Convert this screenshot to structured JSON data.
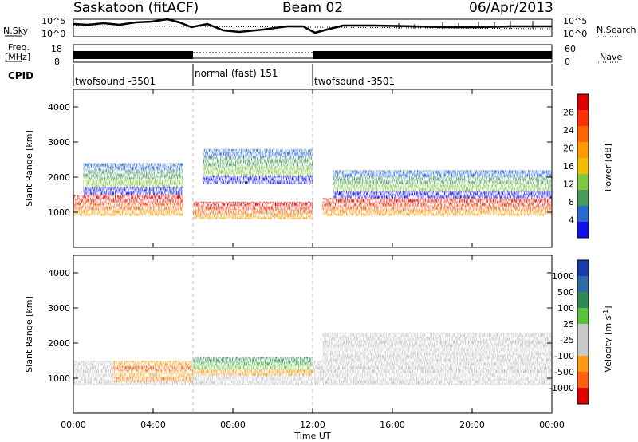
{
  "header": {
    "station": "Saskatoon  (fitACF)",
    "beam": "Beam 02",
    "date": "06/Apr/2013"
  },
  "strip": {
    "nsky_label": "N.Sky",
    "nsky_ticks": [
      "10^5",
      "10^0"
    ],
    "nsearch_label": "N.Search",
    "freq_label_line1": "Freq.",
    "freq_label_line2": "[MHz]",
    "freq_ticks": [
      "18",
      "8"
    ],
    "nave_label": "Nave",
    "nave_ticks": [
      "60",
      "0"
    ],
    "cpid_label": "CPID",
    "cpid_segments": [
      {
        "label": "twofsound -3501",
        "start_hour": 0,
        "end_hour": 6
      },
      {
        "label": "normal (fast) 151",
        "start_hour": 6,
        "end_hour": 12
      },
      {
        "label": "twofsound -3501",
        "start_hour": 12,
        "end_hour": 24
      }
    ]
  },
  "chart_data": [
    {
      "type": "heatmap",
      "panel": "power",
      "ylabel": "Slant Range [km]",
      "xlabel": "Time UT",
      "xlim": [
        0,
        24
      ],
      "ylim": [
        0,
        4500
      ],
      "y_ticks": [
        1000,
        2000,
        3000,
        4000
      ],
      "x_ticks": [
        "00:00",
        "04:00",
        "08:00",
        "12:00",
        "16:00",
        "20:00",
        "00:00"
      ],
      "colorbar_label": "Power [dB]",
      "colorbar_ticks": [
        "28",
        "24",
        "20",
        "16",
        "12",
        "8",
        "4"
      ],
      "colorbar_colors": [
        "#e00000",
        "#ff3000",
        "#ff6400",
        "#ff9a00",
        "#f0c000",
        "#7fc840",
        "#4a9a5a",
        "#2a6ad0",
        "#1010ee"
      ],
      "features": [
        {
          "hours": [
            0,
            5.5
          ],
          "range_km": [
            900,
            1500
          ],
          "level": "high"
        },
        {
          "hours": [
            0.5,
            5.5
          ],
          "range_km": [
            1500,
            2400
          ],
          "level": "low"
        },
        {
          "hours": [
            6,
            12
          ],
          "range_km": [
            800,
            1300
          ],
          "level": "high"
        },
        {
          "hours": [
            6.5,
            12
          ],
          "range_km": [
            1800,
            2800
          ],
          "level": "low"
        },
        {
          "hours": [
            12.5,
            24
          ],
          "range_km": [
            900,
            1400
          ],
          "level": "high"
        },
        {
          "hours": [
            13,
            24
          ],
          "range_km": [
            1400,
            2200
          ],
          "level": "low"
        }
      ]
    },
    {
      "type": "heatmap",
      "panel": "velocity",
      "ylabel": "Slant Range [km]",
      "xlabel": "Time UT",
      "xlim": [
        0,
        24
      ],
      "ylim": [
        0,
        4500
      ],
      "y_ticks": [
        1000,
        2000,
        3000,
        4000
      ],
      "x_ticks": [
        "00:00",
        "04:00",
        "08:00",
        "12:00",
        "16:00",
        "20:00",
        "00:00"
      ],
      "colorbar_label": "Velocity [m s",
      "colorbar_label_sup": "-1",
      "colorbar_ticks": [
        "1000",
        "500",
        "100",
        "25",
        "-25",
        "-100",
        "-500",
        "-1000"
      ],
      "colorbar_colors": [
        "#1c3aa8",
        "#2f6aa8",
        "#2e8a52",
        "#5cc23c",
        "#c8c8c8",
        "#c8c8c8",
        "#ff9a10",
        "#ff6010",
        "#e00000"
      ],
      "features": [
        {
          "hours": [
            0,
            24
          ],
          "range_km": [
            800,
            1500
          ],
          "level": "ground-scatter"
        },
        {
          "hours": [
            2,
            6
          ],
          "range_km": [
            900,
            1500
          ],
          "level": "negative"
        },
        {
          "hours": [
            6,
            12
          ],
          "range_km": [
            900,
            1600
          ],
          "level": "mixed"
        },
        {
          "hours": [
            12.5,
            24
          ],
          "range_km": [
            1500,
            2300
          ],
          "level": "ground-scatter"
        }
      ]
    }
  ]
}
